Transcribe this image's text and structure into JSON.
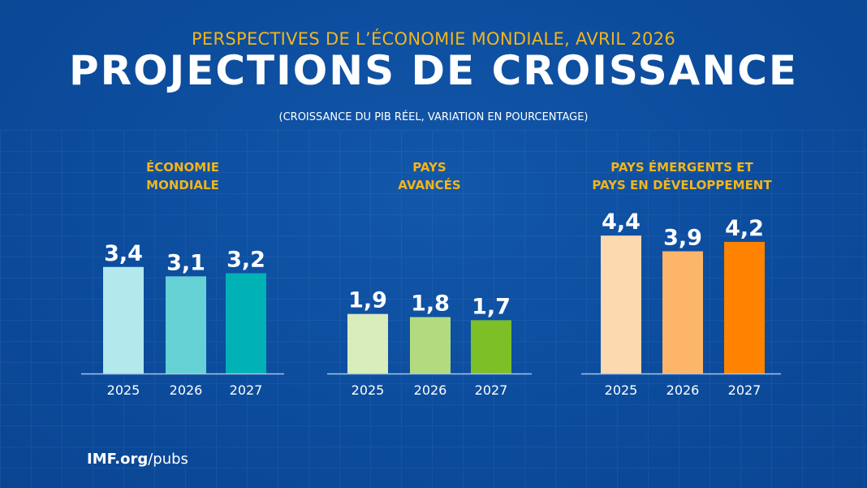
{
  "header": {
    "subtitle": "PERSPECTIVES DE L’ÉCONOMIE MONDIALE, AVRIL 2026",
    "title": "PROJECTIONS DE CROISSANCE",
    "note": "(CROISSANCE DU PIB RÉEL, VARIATION EN POURCENTAGE)"
  },
  "footer": {
    "site": "IMF.org",
    "path": "/pubs"
  },
  "chart_data": [
    {
      "type": "bar",
      "title": "ÉCONOMIE\nMONDIALE",
      "categories": [
        "2025",
        "2026",
        "2027"
      ],
      "values": [
        3.4,
        3.1,
        3.2
      ],
      "labels": [
        "3,4",
        "3,1",
        "3,2"
      ],
      "colors": [
        "#b3e8ec",
        "#66d1d4",
        "#00b1b5"
      ],
      "ylim": [
        0,
        4.4
      ]
    },
    {
      "type": "bar",
      "title": "PAYS\nAVANCÉS",
      "categories": [
        "2025",
        "2026",
        "2027"
      ],
      "values": [
        1.9,
        1.8,
        1.7
      ],
      "labels": [
        "1,9",
        "1,8",
        "1,7"
      ],
      "colors": [
        "#d8ecbc",
        "#b2db80",
        "#7cbf27"
      ],
      "ylim": [
        0,
        4.4
      ]
    },
    {
      "type": "bar",
      "title": "PAYS ÉMERGENTS ET\nPAYS EN DÉVELOPPEMENT",
      "categories": [
        "2025",
        "2026",
        "2027"
      ],
      "values": [
        4.4,
        3.9,
        4.2
      ],
      "labels": [
        "4,4",
        "3,9",
        "4,2"
      ],
      "colors": [
        "#fdd9b0",
        "#fdb56a",
        "#ff8200"
      ],
      "ylim": [
        0,
        4.4
      ]
    }
  ],
  "colors": {
    "background": "#0c4c9d",
    "accent": "#f2b51c",
    "text": "#ffffff"
  }
}
